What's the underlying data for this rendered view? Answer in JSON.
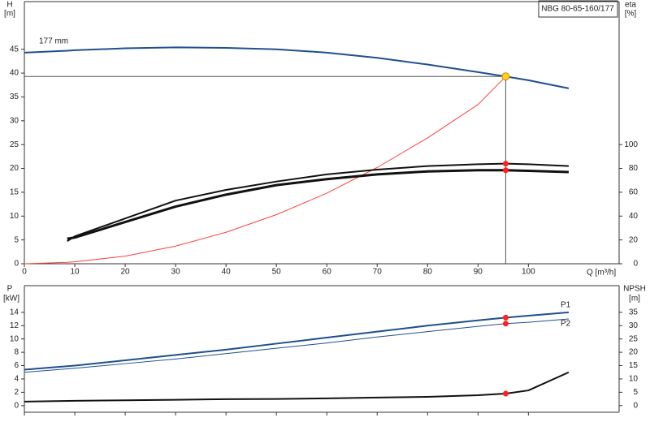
{
  "chart_data": [
    {
      "type": "line",
      "title": "NBG 80-65-160/177",
      "ylabel": "H",
      "yunit": "[m]",
      "y2label": "eta",
      "y2unit": "[%]",
      "xlabel": "Q [m³/h]",
      "x": [
        0,
        8.5,
        10,
        20,
        30,
        40,
        50,
        60,
        70,
        80,
        90,
        95.5,
        100,
        108
      ],
      "xlim": [
        0,
        118
      ],
      "xticks": [
        0,
        10,
        20,
        30,
        40,
        50,
        60,
        70,
        80,
        90,
        100
      ],
      "xtick_labels": true,
      "ylim": [
        0,
        55
      ],
      "yticks": [
        0,
        5,
        10,
        15,
        20,
        25,
        30,
        35,
        40,
        45
      ],
      "y2lim": [
        0,
        220
      ],
      "y2ticks": [
        0,
        20,
        40,
        60,
        80,
        100
      ],
      "grid": false,
      "marker_color": "#ff2020",
      "operating_point": {
        "x": 95.5,
        "y": 39.3,
        "color": "#ffd21f"
      },
      "series": [
        {
          "name": "177 mm",
          "color": "#1f4f8f",
          "line_width": 2,
          "values": [
            44.3,
            44.7,
            44.8,
            45.2,
            45.4,
            45.3,
            45.0,
            44.3,
            43.2,
            41.8,
            40.2,
            39.3,
            38.5,
            36.8
          ]
        },
        {
          "color": "#ff4040",
          "line_width": 1,
          "values": [
            0,
            0.3,
            0.4,
            1.6,
            3.7,
            6.6,
            10.3,
            14.8,
            20.2,
            26.4,
            33.4,
            39.3,
            null,
            null
          ]
        },
        {
          "color": "#111111",
          "line_width": 2,
          "axis": "y2",
          "values": [
            null,
            19,
            23,
            38,
            53,
            62,
            69,
            75,
            79,
            82,
            83.5,
            84,
            83.5,
            82
          ]
        },
        {
          "color": "#111111",
          "line_width": 3,
          "axis": "y2",
          "values": [
            null,
            21,
            22,
            35,
            48,
            58,
            66,
            71,
            75,
            77.5,
            78.5,
            78.5,
            78,
            77
          ]
        }
      ]
    },
    {
      "type": "line",
      "ylabel": "P",
      "yunit": "[kW]",
      "y2label": "NPSH",
      "y2unit": "[m]",
      "x": [
        0,
        10,
        20,
        30,
        40,
        50,
        60,
        70,
        80,
        90,
        95.5,
        100,
        108
      ],
      "xlim": [
        0,
        118
      ],
      "xticks": [
        0,
        10,
        20,
        30,
        40,
        50,
        60,
        70,
        80,
        90,
        100
      ],
      "xtick_labels": false,
      "ylim": [
        -1,
        18
      ],
      "yticks": [
        0,
        2,
        4,
        6,
        8,
        10,
        12,
        14
      ],
      "y2lim": [
        -2.5,
        45
      ],
      "y2ticks": [
        0,
        5,
        10,
        15,
        20,
        25,
        30,
        35
      ],
      "grid": false,
      "marker_color": "#ff2020",
      "operating_point": {
        "x": 95.5
      },
      "series": [
        {
          "name": "P1",
          "color": "#1f4f8f",
          "line_width": 2,
          "values": [
            5.4,
            6.0,
            6.8,
            7.6,
            8.4,
            9.3,
            10.2,
            11.1,
            12.0,
            12.8,
            13.2,
            13.5,
            14.0
          ]
        },
        {
          "name": "P2",
          "color": "#1f4f8f",
          "line_width": 1,
          "values": [
            5.0,
            5.6,
            6.3,
            7.0,
            7.8,
            8.6,
            9.4,
            10.3,
            11.1,
            11.9,
            12.3,
            12.5,
            13.0
          ]
        },
        {
          "color": "#111111",
          "line_width": 2,
          "axis": "y2",
          "values": [
            1.5,
            1.8,
            2.0,
            2.2,
            2.4,
            2.5,
            2.7,
            3.0,
            3.3,
            3.9,
            4.5,
            5.7,
            12.5
          ]
        }
      ]
    }
  ]
}
